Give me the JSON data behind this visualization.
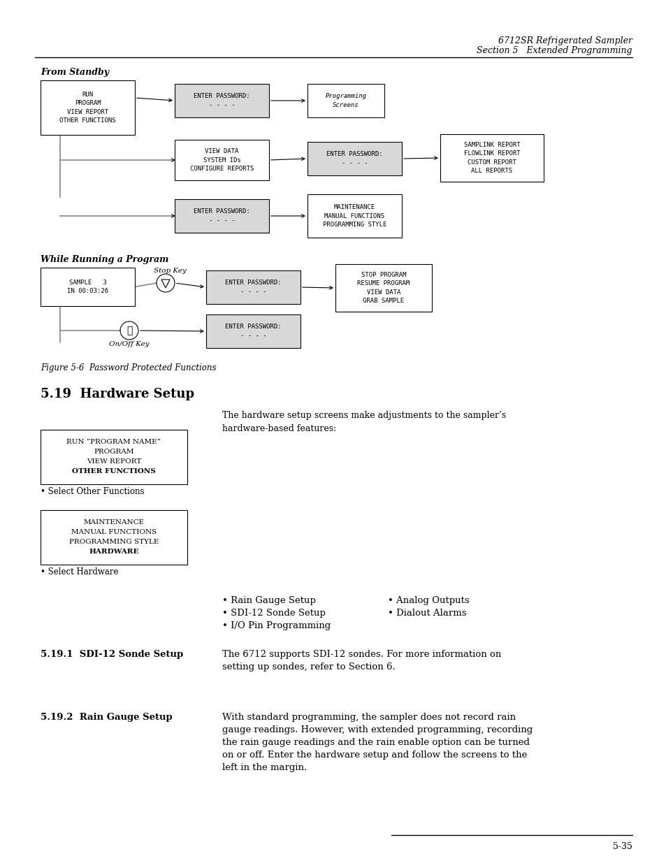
{
  "page_title_line1": "6712SR Refrigerated Sampler",
  "page_title_line2": "Section 5   Extended Programming",
  "page_number": "5-35",
  "from_standby_label": "From Standby",
  "while_running_label": "While Running a Program",
  "figure_caption": "Figure 5-6  Password Protected Functions",
  "section_title": "5.19  Hardware Setup",
  "hardware_intro": "The hardware setup screens make adjustments to the sampler’s\nhardware-based features:",
  "sub_title_1": "5.19.1  SDI-12 Sonde Setup",
  "sub_text_1": "The 6712 supports SDI-12 sondes. For more information on\nsetting up sondes, refer to Section 6.",
  "sub_title_2": "5.19.2  Rain Gauge Setup",
  "sub_text_2": "With standard programming, the sampler does not record rain\ngauge readings. However, with extended programming, recording\nthe rain gauge readings and the rain enable option can be turned\non or off. Enter the hardware setup and follow the screens to the\nleft in the margin.",
  "bullet_col1": [
    "Rain Gauge Setup",
    "SDI-12 Sonde Setup",
    "I/O Pin Programming"
  ],
  "bullet_col2": [
    "Analog Outputs",
    "Dialout Alarms"
  ],
  "select_other_label": "• Select Other Functions",
  "select_hardware_label": "• Select Hardware",
  "box1_lines": [
    "RUN",
    "PROGRAM",
    "VIEW REPORT",
    "OTHER FUNCTIONS"
  ],
  "box2_lines": [
    "ENTER PASSWORD:",
    "- - - -"
  ],
  "box3_lines": [
    "Programming",
    "Screens"
  ],
  "box4_lines": [
    "VIEW DATA",
    "SYSTEM IDs",
    "CONFIGURE REPORTS"
  ],
  "box5_lines": [
    "ENTER PASSWORD:",
    "- - - -"
  ],
  "box6_lines": [
    "SAMPLINK REPORT",
    "FLOWLINK REPORT",
    "CUSTOM REPORT",
    "ALL REPORTS"
  ],
  "box7_lines": [
    "ENTER PASSWORD:",
    "- - - -"
  ],
  "box8_lines": [
    "MAINTENANCE",
    "MANUAL FUNCTIONS",
    "PROGRAMMING STYLE"
  ],
  "box_sample_lines": [
    "SAMPLE   3",
    "IN 00:03:26"
  ],
  "box_stop_lines": [
    "STOP PROGRAM",
    "RESUME PROGRAM",
    "VIEW DATA",
    "GRAB SAMPLE"
  ],
  "box_pw_stop_lines": [
    "ENTER PASSWORD:",
    "- - - -"
  ],
  "box_pw_onoff_lines": [
    "ENTER PASSWORD:",
    "- - - -"
  ],
  "stop_key_label": "Stop Key",
  "onoff_key_label": "On/Off Key",
  "margin_box1_lines": [
    "RUN “PROGRAM NAME”",
    "PROGRAM",
    "VIEW REPORT",
    "OTHER FUNCTIONS"
  ],
  "margin_box2_lines": [
    "MAINTENANCE",
    "MANUAL FUNCTIONS",
    "PROGRAMMING STYLE",
    "HARDWARE"
  ],
  "bg_color": "#ffffff"
}
